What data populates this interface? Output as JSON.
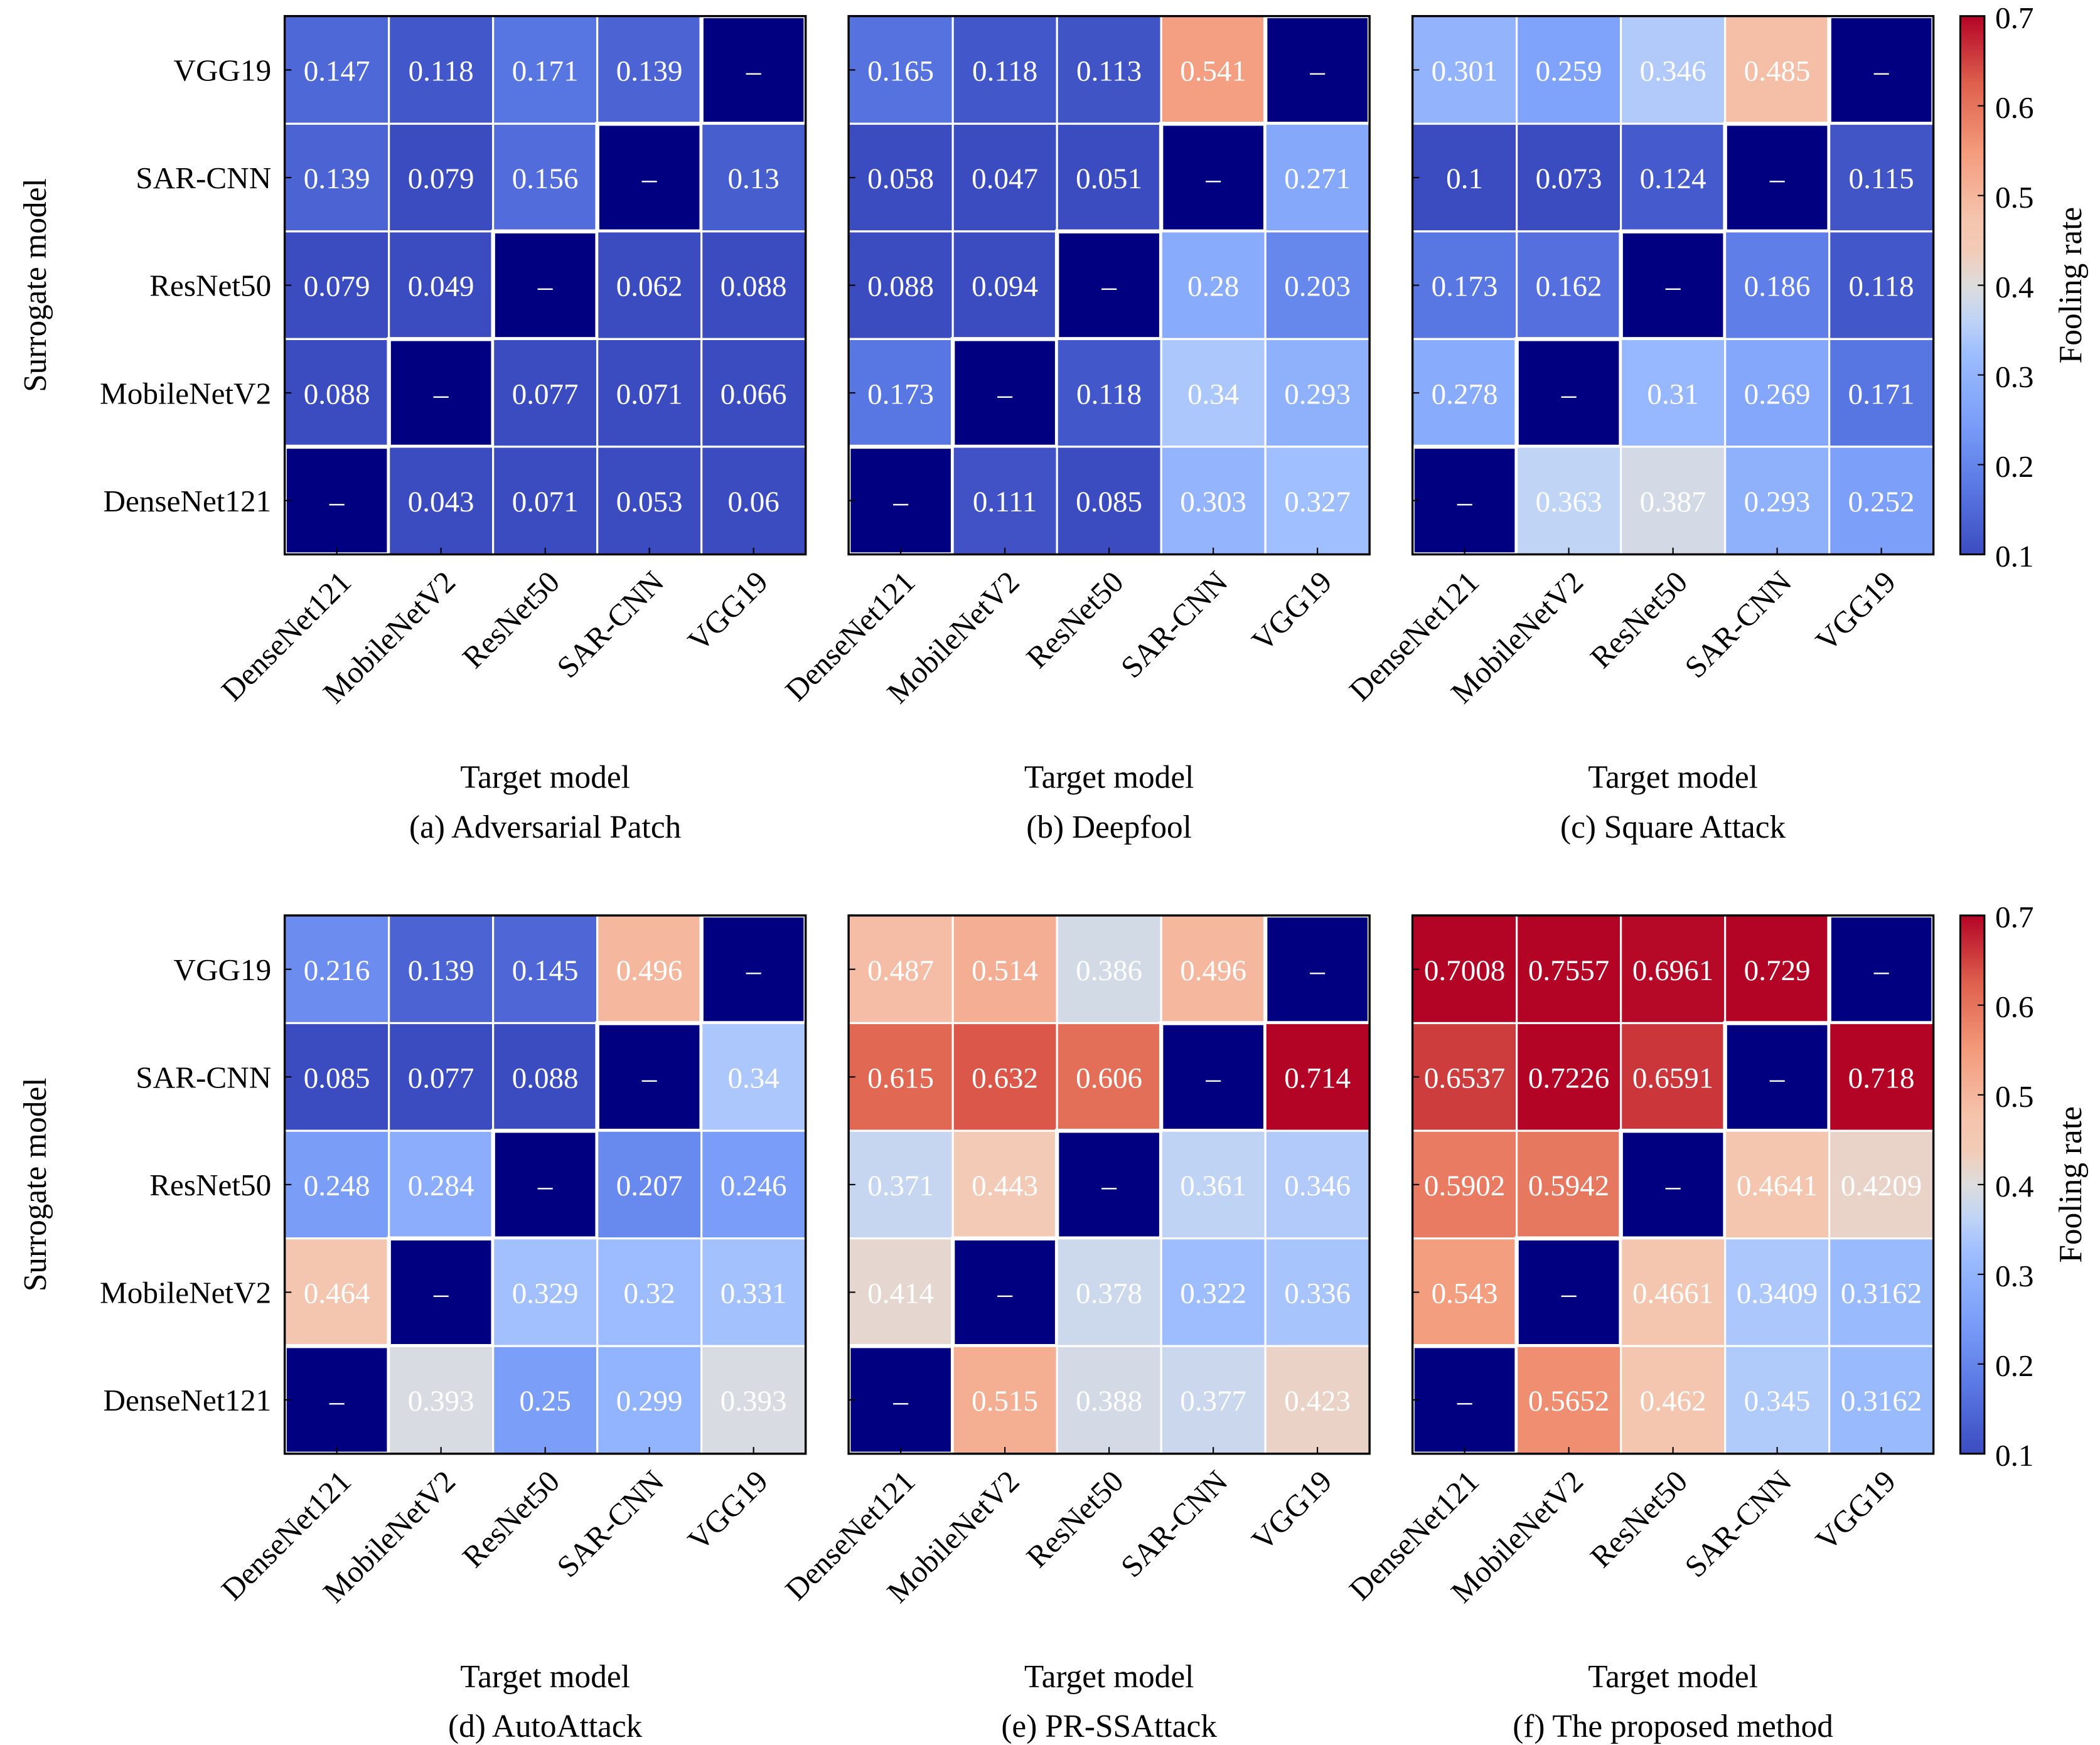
{
  "chart_data": {
    "type": "heatmap",
    "colormap": "coolwarm",
    "diagonal_color": "#000080",
    "diagonal_label": "–",
    "vmin": 0.1,
    "vmax": 0.7,
    "row_labels": [
      "VGG19",
      "SAR-CNN",
      "ResNet50",
      "MobileNetV2",
      "DenseNet121"
    ],
    "col_labels": [
      "DenseNet121",
      "MobileNetV2",
      "ResNet50",
      "SAR-CNN",
      "VGG19"
    ],
    "ylabel": "Surrogate model",
    "xlabel": "Target model",
    "colorbar": {
      "label": "Fooling rate",
      "ticks": [
        "0.1",
        "0.2",
        "0.3",
        "0.4",
        "0.5",
        "0.6",
        "0.7"
      ]
    },
    "panels": [
      {
        "caption": "(a) Adversarial Patch",
        "values": [
          [
            0.147,
            0.118,
            0.171,
            0.139,
            null
          ],
          [
            0.139,
            0.079,
            0.156,
            null,
            0.13
          ],
          [
            0.079,
            0.049,
            null,
            0.062,
            0.088
          ],
          [
            0.088,
            null,
            0.077,
            0.071,
            0.066
          ],
          [
            null,
            0.043,
            0.071,
            0.053,
            0.06
          ]
        ]
      },
      {
        "caption": "(b) Deepfool",
        "values": [
          [
            0.165,
            0.118,
            0.113,
            0.541,
            null
          ],
          [
            0.058,
            0.047,
            0.051,
            null,
            0.271
          ],
          [
            0.088,
            0.094,
            null,
            0.28,
            0.203
          ],
          [
            0.173,
            null,
            0.118,
            0.34,
            0.293
          ],
          [
            null,
            0.111,
            0.085,
            0.303,
            0.327
          ]
        ]
      },
      {
        "caption": "(c) Square Attack",
        "values": [
          [
            0.301,
            0.259,
            0.346,
            0.485,
            null
          ],
          [
            0.1,
            0.073,
            0.124,
            null,
            0.115
          ],
          [
            0.173,
            0.162,
            null,
            0.186,
            0.118
          ],
          [
            0.278,
            null,
            0.31,
            0.269,
            0.171
          ],
          [
            null,
            0.363,
            0.387,
            0.293,
            0.252
          ]
        ]
      },
      {
        "caption": "(d) AutoAttack",
        "values": [
          [
            0.216,
            0.139,
            0.145,
            0.496,
            null
          ],
          [
            0.085,
            0.077,
            0.088,
            null,
            0.34
          ],
          [
            0.248,
            0.284,
            null,
            0.207,
            0.246
          ],
          [
            0.464,
            null,
            0.329,
            0.32,
            0.331
          ],
          [
            null,
            0.393,
            0.25,
            0.299,
            0.393
          ]
        ]
      },
      {
        "caption": "(e) PR-SSAttack",
        "values": [
          [
            0.487,
            0.514,
            0.386,
            0.496,
            null
          ],
          [
            0.615,
            0.632,
            0.606,
            null,
            0.714
          ],
          [
            0.371,
            0.443,
            null,
            0.361,
            0.346
          ],
          [
            0.414,
            null,
            0.378,
            0.322,
            0.336
          ],
          [
            null,
            0.515,
            0.388,
            0.377,
            0.423
          ]
        ]
      },
      {
        "caption": "(f) The proposed method",
        "values": [
          [
            0.7008,
            0.7557,
            0.6961,
            0.729,
            null
          ],
          [
            0.6537,
            0.7226,
            0.6591,
            null,
            0.718
          ],
          [
            0.5902,
            0.5942,
            null,
            0.4641,
            0.4209
          ],
          [
            0.543,
            null,
            0.4661,
            0.3409,
            0.3162
          ],
          [
            null,
            0.5652,
            0.462,
            0.345,
            0.3162
          ]
        ]
      }
    ]
  }
}
